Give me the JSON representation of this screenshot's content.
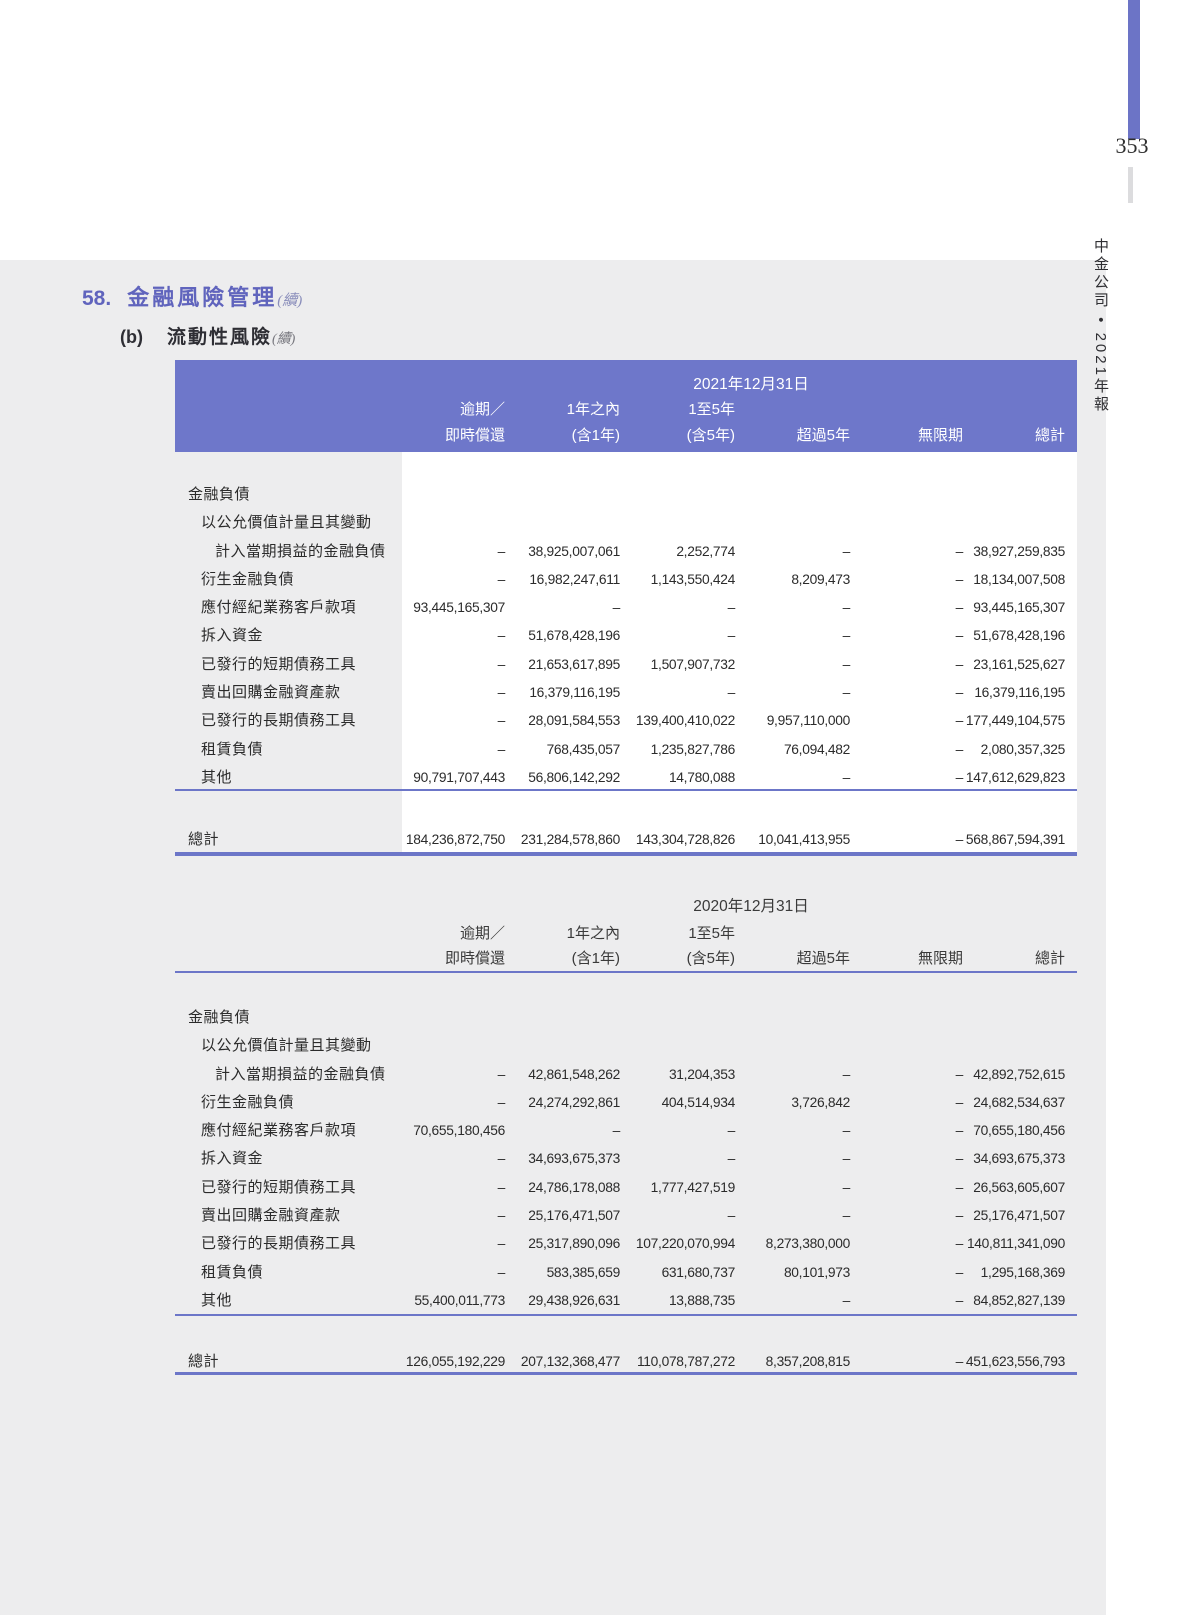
{
  "page": {
    "number": "353",
    "spine_title": "中金公司 • 2021年報"
  },
  "headings": {
    "section_number": "58.",
    "section_title": "金融風險管理",
    "section_cont": "(續)",
    "sub_label": "(b)",
    "sub_title": "流動性風險",
    "sub_cont": "(續)"
  },
  "columns": {
    "top": [
      "逾期／",
      "1年之內",
      "1至5年"
    ],
    "bottom": [
      "即時償還",
      "(含1年)",
      "(含5年)",
      "超過5年",
      "無限期",
      "總計"
    ]
  },
  "tables": [
    {
      "date": "2021年12月31日",
      "rows": [
        {
          "label": "金融負債",
          "indent": 0,
          "values": null
        },
        {
          "label": "以公允價值計量且其變動",
          "indent": 1,
          "values": null
        },
        {
          "label": "計入當期損益的金融負債",
          "indent": 2,
          "values": [
            "–",
            "38,925,007,061",
            "2,252,774",
            "–",
            "–",
            "38,927,259,835"
          ]
        },
        {
          "label": "衍生金融負債",
          "indent": 1,
          "values": [
            "–",
            "16,982,247,611",
            "1,143,550,424",
            "8,209,473",
            "–",
            "18,134,007,508"
          ]
        },
        {
          "label": "應付經紀業務客戶款項",
          "indent": 1,
          "values": [
            "93,445,165,307",
            "–",
            "–",
            "–",
            "–",
            "93,445,165,307"
          ]
        },
        {
          "label": "拆入資金",
          "indent": 1,
          "values": [
            "–",
            "51,678,428,196",
            "–",
            "–",
            "–",
            "51,678,428,196"
          ]
        },
        {
          "label": "已發行的短期債務工具",
          "indent": 1,
          "values": [
            "–",
            "21,653,617,895",
            "1,507,907,732",
            "–",
            "–",
            "23,161,525,627"
          ]
        },
        {
          "label": "賣出回購金融資產款",
          "indent": 1,
          "values": [
            "–",
            "16,379,116,195",
            "–",
            "–",
            "–",
            "16,379,116,195"
          ]
        },
        {
          "label": "已發行的長期債務工具",
          "indent": 1,
          "values": [
            "–",
            "28,091,584,553",
            "139,400,410,022",
            "9,957,110,000",
            "–",
            "177,449,104,575"
          ]
        },
        {
          "label": "租賃負債",
          "indent": 1,
          "values": [
            "–",
            "768,435,057",
            "1,235,827,786",
            "76,094,482",
            "–",
            "2,080,357,325"
          ]
        },
        {
          "label": "其他",
          "indent": 1,
          "values": [
            "90,791,707,443",
            "56,806,142,292",
            "14,780,088",
            "–",
            "–",
            "147,612,629,823"
          ]
        }
      ],
      "total_label": "總計",
      "total_values": [
        "184,236,872,750",
        "231,284,578,860",
        "143,304,728,826",
        "10,041,413,955",
        "–",
        "568,867,594,391"
      ]
    },
    {
      "date": "2020年12月31日",
      "rows": [
        {
          "label": "金融負債",
          "indent": 0,
          "values": null
        },
        {
          "label": "以公允價值計量且其變動",
          "indent": 1,
          "values": null
        },
        {
          "label": "計入當期損益的金融負債",
          "indent": 2,
          "values": [
            "–",
            "42,861,548,262",
            "31,204,353",
            "–",
            "–",
            "42,892,752,615"
          ]
        },
        {
          "label": "衍生金融負債",
          "indent": 1,
          "values": [
            "–",
            "24,274,292,861",
            "404,514,934",
            "3,726,842",
            "–",
            "24,682,534,637"
          ]
        },
        {
          "label": "應付經紀業務客戶款項",
          "indent": 1,
          "values": [
            "70,655,180,456",
            "–",
            "–",
            "–",
            "–",
            "70,655,180,456"
          ]
        },
        {
          "label": "拆入資金",
          "indent": 1,
          "values": [
            "–",
            "34,693,675,373",
            "–",
            "–",
            "–",
            "34,693,675,373"
          ]
        },
        {
          "label": "已發行的短期債務工具",
          "indent": 1,
          "values": [
            "–",
            "24,786,178,088",
            "1,777,427,519",
            "–",
            "–",
            "26,563,605,607"
          ]
        },
        {
          "label": "賣出回購金融資產款",
          "indent": 1,
          "values": [
            "–",
            "25,176,471,507",
            "–",
            "–",
            "–",
            "25,176,471,507"
          ]
        },
        {
          "label": "已發行的長期債務工具",
          "indent": 1,
          "values": [
            "–",
            "25,317,890,096",
            "107,220,070,994",
            "8,273,380,000",
            "–",
            "140,811,341,090"
          ]
        },
        {
          "label": "租賃負債",
          "indent": 1,
          "values": [
            "–",
            "583,385,659",
            "631,680,737",
            "80,101,973",
            "–",
            "1,295,168,369"
          ]
        },
        {
          "label": "其他",
          "indent": 1,
          "values": [
            "55,400,011,773",
            "29,438,926,631",
            "13,888,735",
            "–",
            "–",
            "84,852,827,139"
          ]
        }
      ],
      "total_label": "總計",
      "total_values": [
        "126,055,192,229",
        "207,132,368,477",
        "110,078,787,272",
        "8,357,208,815",
        "–",
        "451,623,556,793"
      ]
    }
  ],
  "colors": {
    "accent_purple": "#6e77ca",
    "rule_purple": "#6c76c8",
    "page_gray": "#ededee",
    "heading_purple": "#6064bd"
  }
}
